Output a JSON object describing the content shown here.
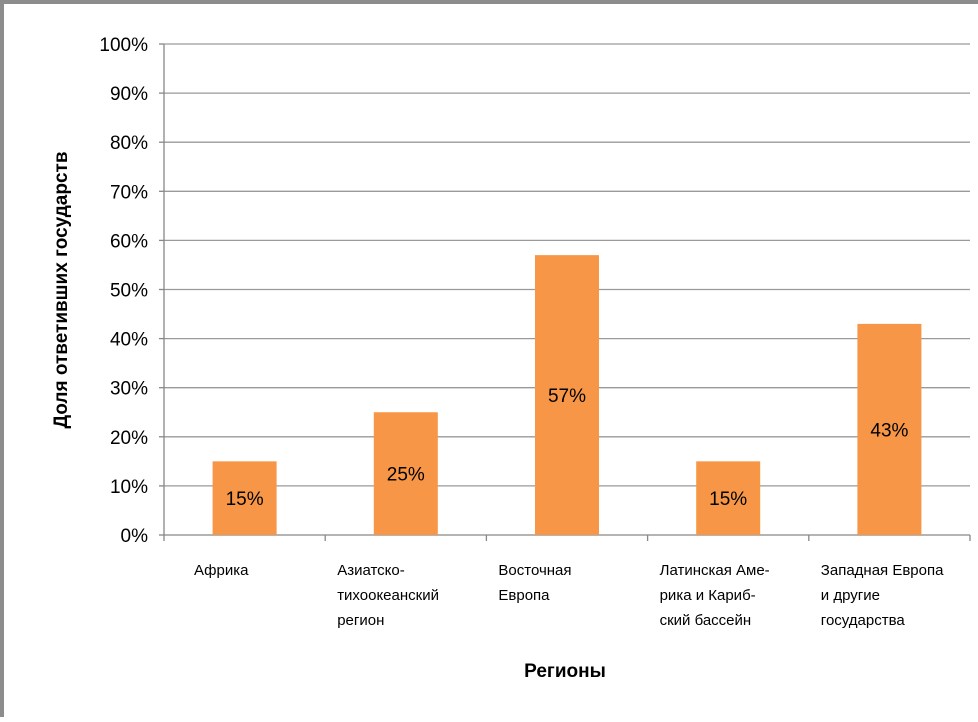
{
  "chart_data": {
    "type": "bar",
    "title": "",
    "xlabel": "Регионы",
    "ylabel": "Доля ответивших государств",
    "ylim": [
      0,
      100
    ],
    "yticks": [
      "0%",
      "10%",
      "20%",
      "30%",
      "40%",
      "50%",
      "60%",
      "70%",
      "80%",
      "90%",
      "100%"
    ],
    "categories": [
      [
        "Африка"
      ],
      [
        "Азиатско-",
        "тихоокеанский",
        "регион"
      ],
      [
        "Восточная",
        "Европа"
      ],
      [
        "Латинская Аме-",
        "рика и Кариб-",
        "ский бассейн"
      ],
      [
        "Западная Европа",
        "и другие",
        "государства"
      ]
    ],
    "values": [
      15,
      25,
      57,
      15,
      43
    ],
    "data_labels": [
      "15%",
      "25%",
      "57%",
      "15%",
      "43%"
    ],
    "bar_color": "#f79646",
    "grid": true,
    "legend": "none"
  }
}
